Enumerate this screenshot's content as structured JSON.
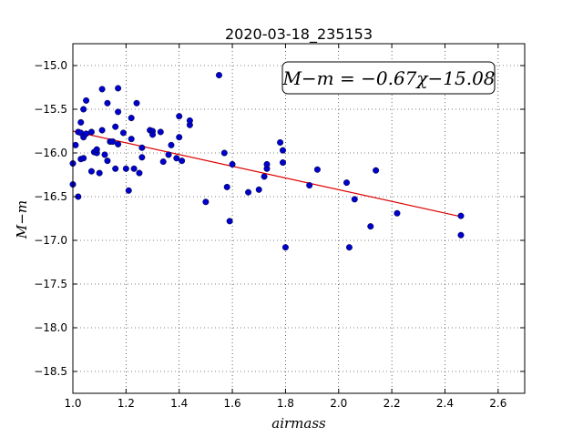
{
  "chart_data": {
    "type": "scatter",
    "title": "2020-03-18_235153",
    "xlabel": "airmass",
    "ylabel": "M−m",
    "xlim": [
      1.0,
      2.7
    ],
    "ylim": [
      -18.75,
      -14.75
    ],
    "y_inverted": true,
    "grid": true,
    "x_ticks": [
      1.0,
      1.2,
      1.4,
      1.6,
      1.8,
      2.0,
      2.2,
      2.4,
      2.6
    ],
    "x_tick_labels": [
      "1.0",
      "1.2",
      "1.4",
      "1.6",
      "1.8",
      "2.0",
      "2.2",
      "2.4",
      "2.6"
    ],
    "y_ticks": [
      -15.0,
      -15.5,
      -16.0,
      -16.5,
      -17.0,
      -17.5,
      -18.0,
      -18.5
    ],
    "y_tick_labels": [
      "−15.0",
      "−15.5",
      "−16.0",
      "−16.5",
      "−17.0",
      "−17.5",
      "−18.0",
      "−18.5"
    ],
    "annotation": "M−m = −0.67χ−15.08",
    "annotation_position": "top-right",
    "points_color": "#0000cc",
    "fit_color": "#dd0000",
    "fit": {
      "slope": -0.67,
      "intercept": -15.08,
      "x_range": [
        1.0,
        2.46
      ]
    },
    "points": [
      {
        "x": 1.0,
        "y": -16.12
      },
      {
        "x": 1.0,
        "y": -16.36
      },
      {
        "x": 1.01,
        "y": -15.91
      },
      {
        "x": 1.02,
        "y": -15.76
      },
      {
        "x": 1.02,
        "y": -16.5
      },
      {
        "x": 1.03,
        "y": -15.65
      },
      {
        "x": 1.03,
        "y": -16.07
      },
      {
        "x": 1.03,
        "y": -15.77
      },
      {
        "x": 1.04,
        "y": -15.5
      },
      {
        "x": 1.04,
        "y": -16.06
      },
      {
        "x": 1.04,
        "y": -15.82
      },
      {
        "x": 1.05,
        "y": -15.4
      },
      {
        "x": 1.05,
        "y": -15.78
      },
      {
        "x": 1.07,
        "y": -15.76
      },
      {
        "x": 1.07,
        "y": -16.21
      },
      {
        "x": 1.08,
        "y": -15.99
      },
      {
        "x": 1.09,
        "y": -16.0
      },
      {
        "x": 1.09,
        "y": -15.96
      },
      {
        "x": 1.1,
        "y": -16.23
      },
      {
        "x": 1.11,
        "y": -15.27
      },
      {
        "x": 1.11,
        "y": -15.74
      },
      {
        "x": 1.12,
        "y": -16.02
      },
      {
        "x": 1.13,
        "y": -15.43
      },
      {
        "x": 1.13,
        "y": -16.09
      },
      {
        "x": 1.14,
        "y": -15.87
      },
      {
        "x": 1.15,
        "y": -15.87
      },
      {
        "x": 1.16,
        "y": -16.18
      },
      {
        "x": 1.16,
        "y": -15.7
      },
      {
        "x": 1.17,
        "y": -15.26
      },
      {
        "x": 1.17,
        "y": -15.53
      },
      {
        "x": 1.17,
        "y": -15.9
      },
      {
        "x": 1.19,
        "y": -15.77
      },
      {
        "x": 1.2,
        "y": -16.18
      },
      {
        "x": 1.21,
        "y": -16.43
      },
      {
        "x": 1.22,
        "y": -15.6
      },
      {
        "x": 1.22,
        "y": -15.84
      },
      {
        "x": 1.23,
        "y": -16.18
      },
      {
        "x": 1.24,
        "y": -15.43
      },
      {
        "x": 1.25,
        "y": -16.23
      },
      {
        "x": 1.26,
        "y": -15.94
      },
      {
        "x": 1.26,
        "y": -16.05
      },
      {
        "x": 1.29,
        "y": -15.74
      },
      {
        "x": 1.3,
        "y": -15.75
      },
      {
        "x": 1.3,
        "y": -15.79
      },
      {
        "x": 1.33,
        "y": -15.76
      },
      {
        "x": 1.34,
        "y": -16.1
      },
      {
        "x": 1.36,
        "y": -16.02
      },
      {
        "x": 1.37,
        "y": -15.91
      },
      {
        "x": 1.39,
        "y": -16.06
      },
      {
        "x": 1.4,
        "y": -15.58
      },
      {
        "x": 1.4,
        "y": -15.82
      },
      {
        "x": 1.41,
        "y": -16.09
      },
      {
        "x": 1.44,
        "y": -15.68
      },
      {
        "x": 1.44,
        "y": -15.63
      },
      {
        "x": 1.5,
        "y": -16.56
      },
      {
        "x": 1.55,
        "y": -15.11
      },
      {
        "x": 1.57,
        "y": -16.0
      },
      {
        "x": 1.58,
        "y": -16.39
      },
      {
        "x": 1.59,
        "y": -16.78
      },
      {
        "x": 1.6,
        "y": -16.13
      },
      {
        "x": 1.66,
        "y": -16.45
      },
      {
        "x": 1.7,
        "y": -16.42
      },
      {
        "x": 1.72,
        "y": -16.27
      },
      {
        "x": 1.73,
        "y": -16.18
      },
      {
        "x": 1.73,
        "y": -16.13
      },
      {
        "x": 1.78,
        "y": -15.88
      },
      {
        "x": 1.79,
        "y": -15.97
      },
      {
        "x": 1.79,
        "y": -16.11
      },
      {
        "x": 1.8,
        "y": -17.08
      },
      {
        "x": 1.89,
        "y": -16.37
      },
      {
        "x": 1.92,
        "y": -16.19
      },
      {
        "x": 2.03,
        "y": -16.34
      },
      {
        "x": 2.04,
        "y": -17.08
      },
      {
        "x": 2.06,
        "y": -16.53
      },
      {
        "x": 2.12,
        "y": -16.84
      },
      {
        "x": 2.14,
        "y": -16.2
      },
      {
        "x": 2.22,
        "y": -16.69
      },
      {
        "x": 2.46,
        "y": -16.72
      },
      {
        "x": 2.46,
        "y": -16.94
      }
    ]
  }
}
